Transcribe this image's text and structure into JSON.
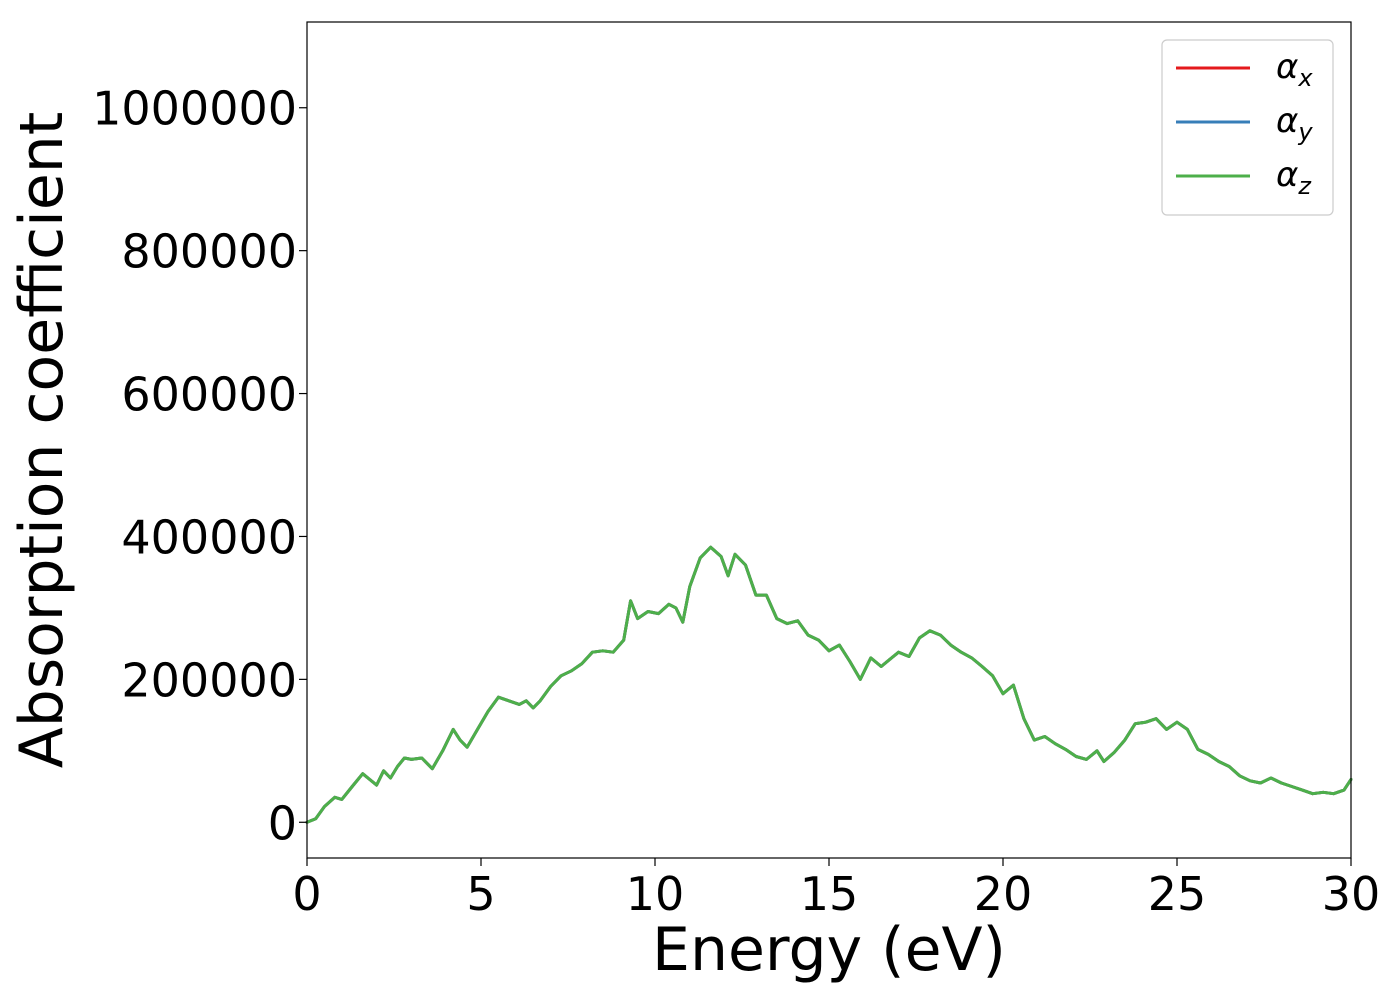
{
  "chart_data": {
    "type": "line",
    "title": "",
    "xlabel": "Energy (eV)",
    "ylabel": "Absorption coefficient",
    "xlim": [
      0,
      30
    ],
    "ylim": [
      -50000,
      1120000
    ],
    "xticks": [
      0,
      5,
      10,
      15,
      20,
      25,
      30
    ],
    "xtick_labels": [
      "0",
      "5",
      "10",
      "15",
      "20",
      "25",
      "30"
    ],
    "yticks": [
      0,
      200000,
      400000,
      600000,
      800000,
      1000000
    ],
    "ytick_labels": [
      "0",
      "200000",
      "400000",
      "600000",
      "800000",
      "1000000"
    ],
    "grid": false,
    "legend_position": "top-right",
    "legend": [
      {
        "main": "α",
        "sub": "x",
        "color": "#e41a1c"
      },
      {
        "main": "α",
        "sub": "y",
        "color": "#377eb8"
      },
      {
        "main": "α",
        "sub": "z",
        "color": "#4daf4a"
      }
    ],
    "x": [
      0,
      0.25,
      0.5,
      0.8,
      1.0,
      1.3,
      1.6,
      1.8,
      2.0,
      2.2,
      2.4,
      2.6,
      2.8,
      3.0,
      3.3,
      3.6,
      3.9,
      4.2,
      4.4,
      4.6,
      4.9,
      5.2,
      5.5,
      5.8,
      6.1,
      6.3,
      6.5,
      6.7,
      7.0,
      7.3,
      7.6,
      7.9,
      8.2,
      8.5,
      8.8,
      9.1,
      9.3,
      9.5,
      9.8,
      10.1,
      10.4,
      10.6,
      10.8,
      11.0,
      11.3,
      11.6,
      11.9,
      12.1,
      12.3,
      12.6,
      12.9,
      13.2,
      13.5,
      13.8,
      14.1,
      14.4,
      14.7,
      15.0,
      15.3,
      15.6,
      15.9,
      16.2,
      16.5,
      16.8,
      17.0,
      17.3,
      17.6,
      17.9,
      18.2,
      18.5,
      18.8,
      19.1,
      19.4,
      19.7,
      20.0,
      20.3,
      20.6,
      20.9,
      21.2,
      21.5,
      21.8,
      22.1,
      22.4,
      22.7,
      22.9,
      23.2,
      23.5,
      23.8,
      24.1,
      24.4,
      24.7,
      25.0,
      25.3,
      25.6,
      25.9,
      26.2,
      26.5,
      26.8,
      27.1,
      27.4,
      27.7,
      28.0,
      28.3,
      28.6,
      28.9,
      29.2,
      29.5,
      29.8,
      30.0
    ],
    "series": [
      {
        "name": "α_x",
        "color": "#e41a1c",
        "values": [
          0,
          5000,
          22000,
          35000,
          32000,
          50000,
          68000,
          60000,
          52000,
          72000,
          62000,
          78000,
          90000,
          88000,
          90000,
          75000,
          100000,
          130000,
          115000,
          105000,
          130000,
          155000,
          175000,
          170000,
          165000,
          170000,
          160000,
          170000,
          190000,
          205000,
          212000,
          222000,
          238000,
          240000,
          238000,
          255000,
          310000,
          285000,
          295000,
          292000,
          305000,
          300000,
          280000,
          330000,
          370000,
          385000,
          372000,
          345000,
          375000,
          360000,
          318000,
          318000,
          285000,
          278000,
          282000,
          262000,
          255000,
          240000,
          248000,
          225000,
          200000,
          230000,
          218000,
          230000,
          238000,
          232000,
          258000,
          268000,
          262000,
          248000,
          238000,
          230000,
          218000,
          205000,
          180000,
          192000,
          145000,
          115000,
          120000,
          110000,
          102000,
          92000,
          88000,
          100000,
          85000,
          98000,
          115000,
          138000,
          140000,
          145000,
          130000,
          140000,
          130000,
          102000,
          95000,
          85000,
          78000,
          65000,
          58000,
          55000,
          62000,
          55000,
          50000,
          45000,
          40000,
          42000,
          40000,
          45000,
          60000
        ]
      },
      {
        "name": "α_y",
        "color": "#377eb8",
        "values": [
          0,
          5000,
          22000,
          35000,
          32000,
          50000,
          68000,
          60000,
          52000,
          72000,
          62000,
          78000,
          90000,
          88000,
          90000,
          75000,
          100000,
          130000,
          115000,
          105000,
          130000,
          155000,
          175000,
          170000,
          165000,
          170000,
          160000,
          170000,
          190000,
          205000,
          212000,
          222000,
          238000,
          240000,
          238000,
          255000,
          310000,
          285000,
          295000,
          292000,
          305000,
          300000,
          280000,
          330000,
          370000,
          385000,
          372000,
          345000,
          375000,
          360000,
          318000,
          318000,
          285000,
          278000,
          282000,
          262000,
          255000,
          240000,
          248000,
          225000,
          200000,
          230000,
          218000,
          230000,
          238000,
          232000,
          258000,
          268000,
          262000,
          248000,
          238000,
          230000,
          218000,
          205000,
          180000,
          192000,
          145000,
          115000,
          120000,
          110000,
          102000,
          92000,
          88000,
          100000,
          85000,
          98000,
          115000,
          138000,
          140000,
          145000,
          130000,
          140000,
          130000,
          102000,
          95000,
          85000,
          78000,
          65000,
          58000,
          55000,
          62000,
          55000,
          50000,
          45000,
          40000,
          42000,
          40000,
          45000,
          60000
        ]
      },
      {
        "name": "α_z",
        "color": "#4daf4a",
        "values": [
          0,
          5000,
          22000,
          35000,
          32000,
          50000,
          68000,
          60000,
          52000,
          72000,
          62000,
          78000,
          90000,
          88000,
          90000,
          75000,
          100000,
          130000,
          115000,
          105000,
          130000,
          155000,
          175000,
          170000,
          165000,
          170000,
          160000,
          170000,
          190000,
          205000,
          212000,
          222000,
          238000,
          240000,
          238000,
          255000,
          310000,
          285000,
          295000,
          292000,
          305000,
          300000,
          280000,
          330000,
          370000,
          385000,
          372000,
          345000,
          375000,
          360000,
          318000,
          318000,
          285000,
          278000,
          282000,
          262000,
          255000,
          240000,
          248000,
          225000,
          200000,
          230000,
          218000,
          230000,
          238000,
          232000,
          258000,
          268000,
          262000,
          248000,
          238000,
          230000,
          218000,
          205000,
          180000,
          192000,
          145000,
          115000,
          120000,
          110000,
          102000,
          92000,
          88000,
          100000,
          85000,
          98000,
          115000,
          138000,
          140000,
          145000,
          130000,
          140000,
          130000,
          102000,
          95000,
          85000,
          78000,
          65000,
          58000,
          55000,
          62000,
          55000,
          50000,
          45000,
          40000,
          42000,
          40000,
          45000,
          60000
        ]
      }
    ]
  }
}
